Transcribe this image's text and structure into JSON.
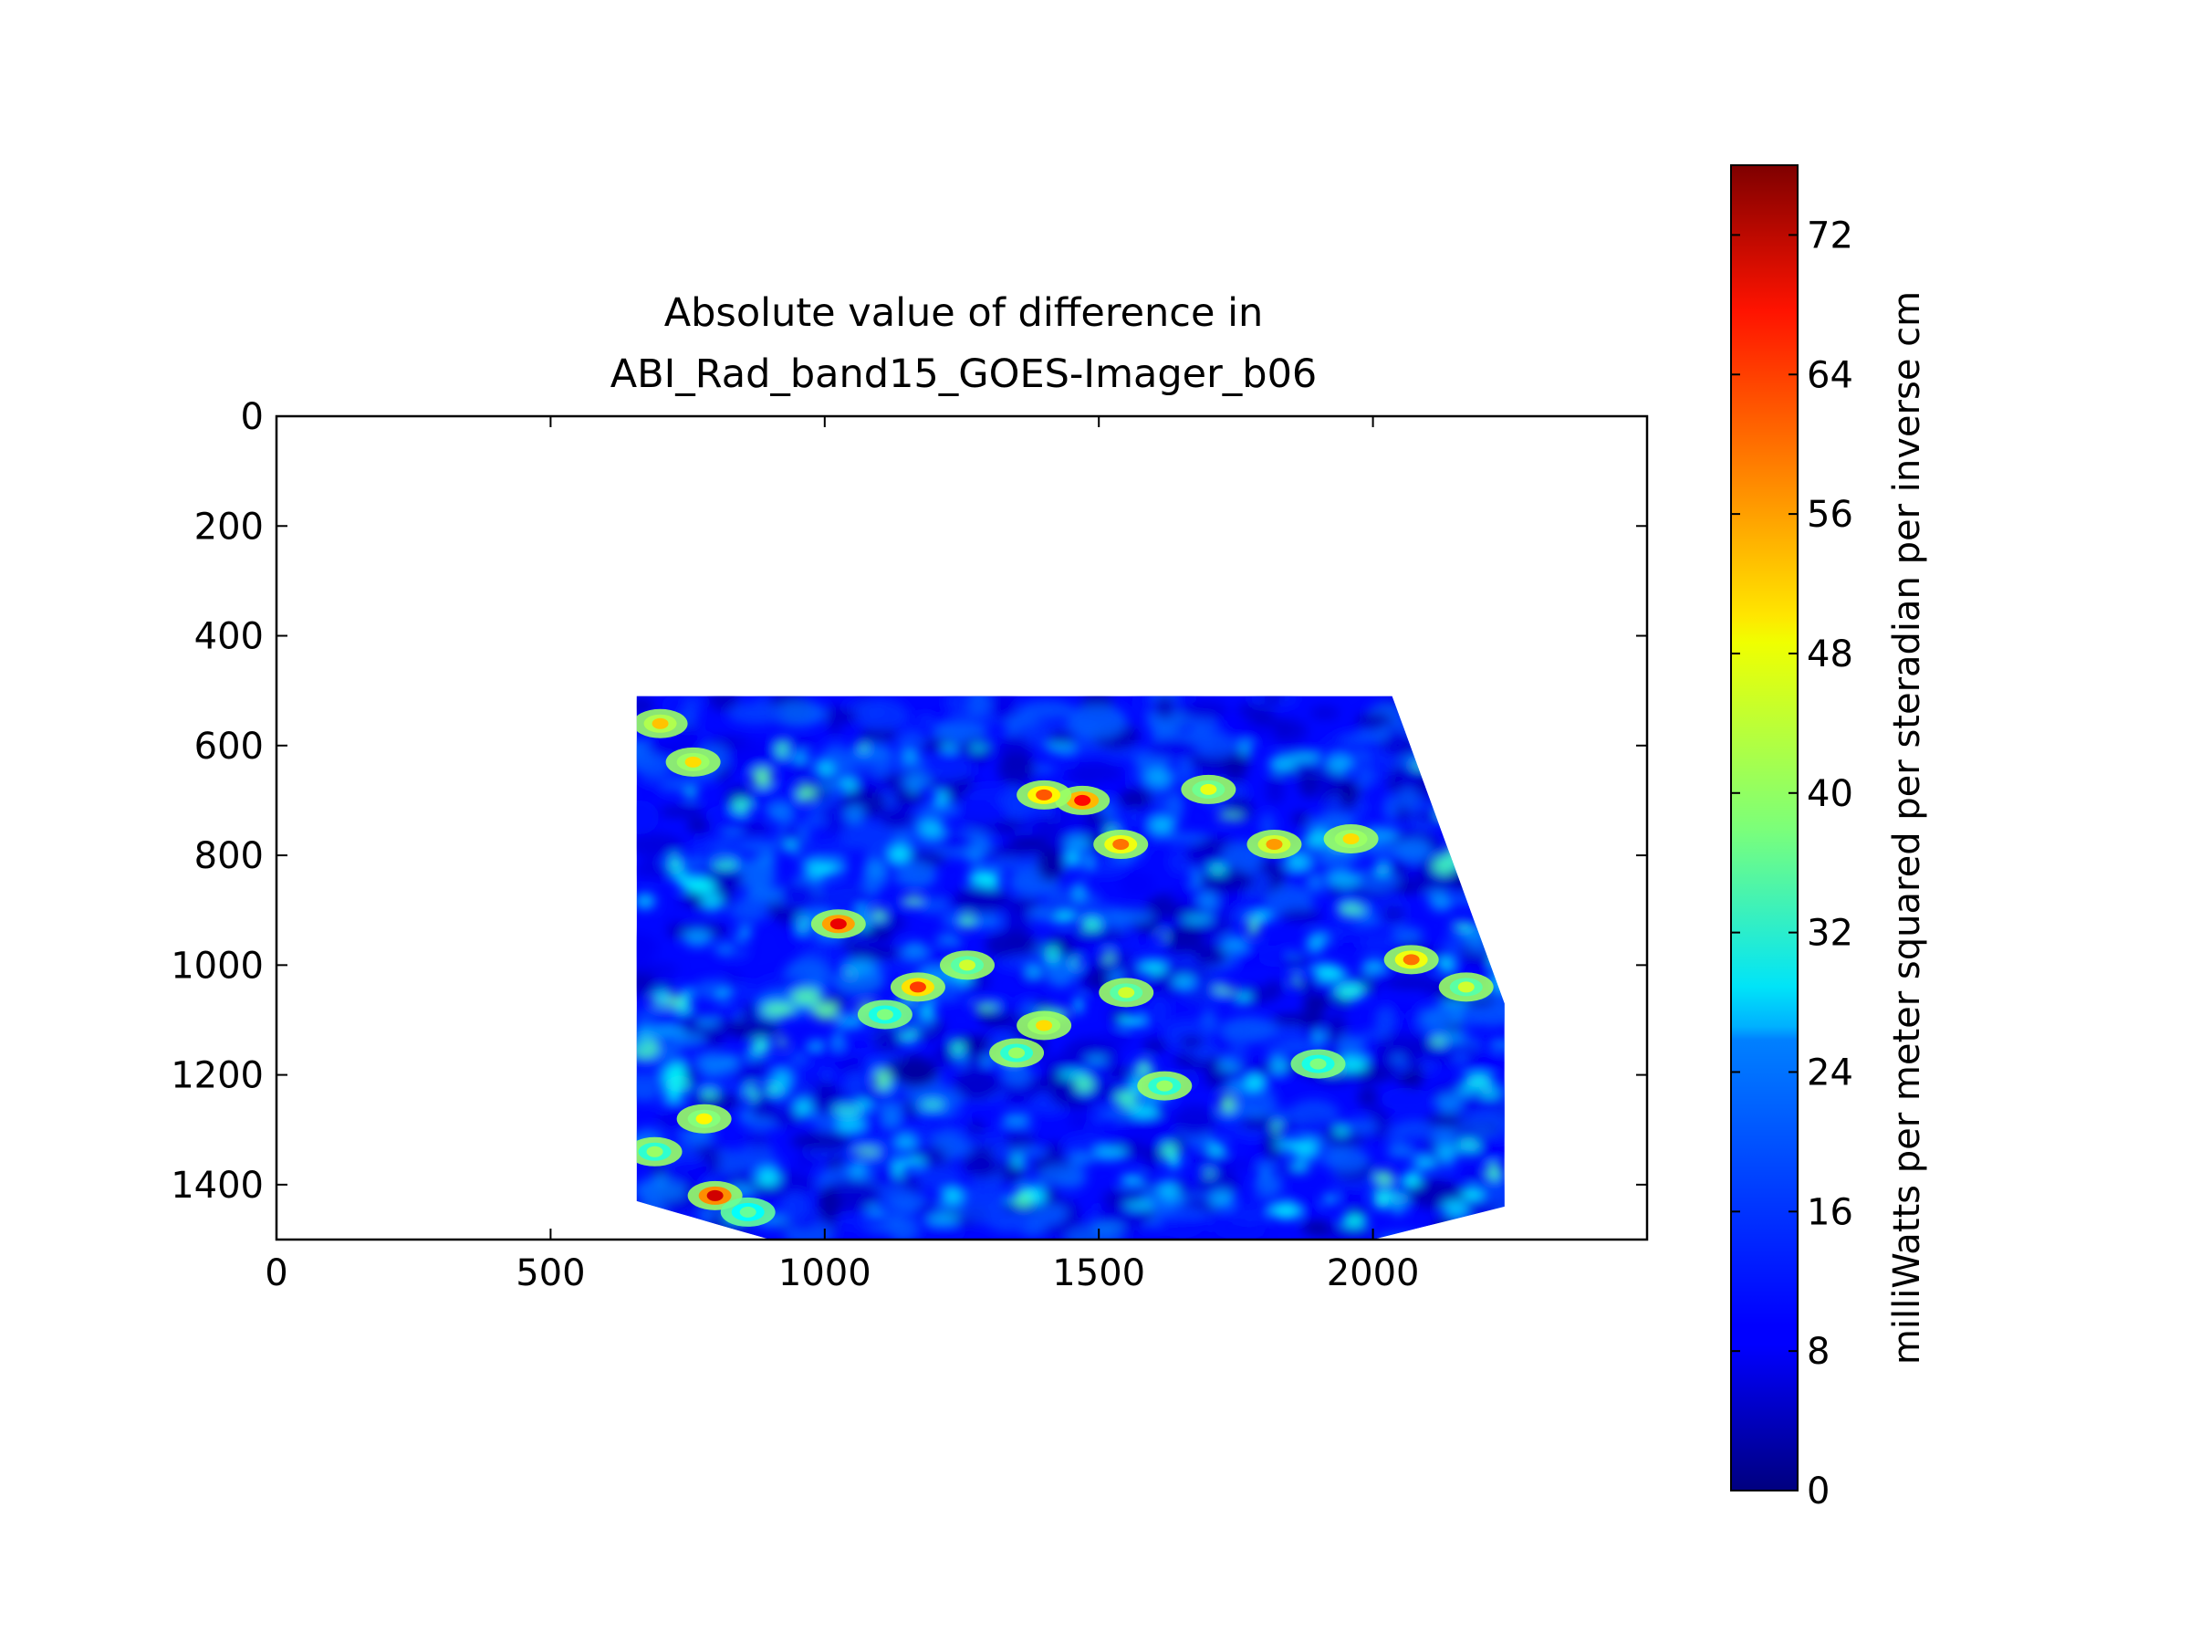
{
  "chart_data": {
    "type": "heatmap",
    "title": [
      "Absolute value of difference in",
      "ABI_Rad_band15_GOES-Imager_b06"
    ],
    "xlabel": "",
    "ylabel": "",
    "xlim": [
      0,
      2500
    ],
    "ylim": [
      1500,
      0
    ],
    "x_ticks": [
      0,
      500,
      1000,
      1500,
      2000
    ],
    "y_ticks": [
      0,
      200,
      400,
      600,
      800,
      1000,
      1200,
      1400
    ],
    "data_region": {
      "description_polygon_data_units": [
        [
          657,
          510
        ],
        [
          2035,
          510
        ],
        [
          2240,
          1070
        ],
        [
          2240,
          1440
        ],
        [
          2000,
          1500
        ],
        [
          900,
          1500
        ],
        [
          657,
          1430
        ]
      ]
    },
    "hotspots": [
      {
        "x": 1170,
        "y": 1040,
        "v": 62
      },
      {
        "x": 1025,
        "y": 925,
        "v": 68
      },
      {
        "x": 1470,
        "y": 700,
        "v": 66
      },
      {
        "x": 1540,
        "y": 780,
        "v": 58
      },
      {
        "x": 1400,
        "y": 690,
        "v": 60
      },
      {
        "x": 1820,
        "y": 780,
        "v": 55
      },
      {
        "x": 1960,
        "y": 770,
        "v": 50
      },
      {
        "x": 2070,
        "y": 990,
        "v": 58
      },
      {
        "x": 800,
        "y": 1420,
        "v": 70
      },
      {
        "x": 780,
        "y": 1280,
        "v": 48
      },
      {
        "x": 700,
        "y": 560,
        "v": 52
      },
      {
        "x": 760,
        "y": 630,
        "v": 50
      },
      {
        "x": 1260,
        "y": 1000,
        "v": 44
      },
      {
        "x": 1400,
        "y": 1110,
        "v": 50
      },
      {
        "x": 1550,
        "y": 1050,
        "v": 44
      },
      {
        "x": 1620,
        "y": 1220,
        "v": 40
      },
      {
        "x": 1900,
        "y": 1180,
        "v": 38
      },
      {
        "x": 1700,
        "y": 680,
        "v": 46
      },
      {
        "x": 1350,
        "y": 1160,
        "v": 40
      },
      {
        "x": 2170,
        "y": 1040,
        "v": 44
      },
      {
        "x": 690,
        "y": 1340,
        "v": 40
      },
      {
        "x": 860,
        "y": 1450,
        "v": 36
      },
      {
        "x": 1110,
        "y": 1090,
        "v": 38
      }
    ],
    "colorbar": {
      "colormap": "jet",
      "range": [
        0,
        76
      ],
      "ticks": [
        0,
        8,
        16,
        24,
        32,
        40,
        48,
        56,
        64,
        72
      ],
      "label": "milliWatts per meter squared per steradian per inverse cm"
    }
  }
}
